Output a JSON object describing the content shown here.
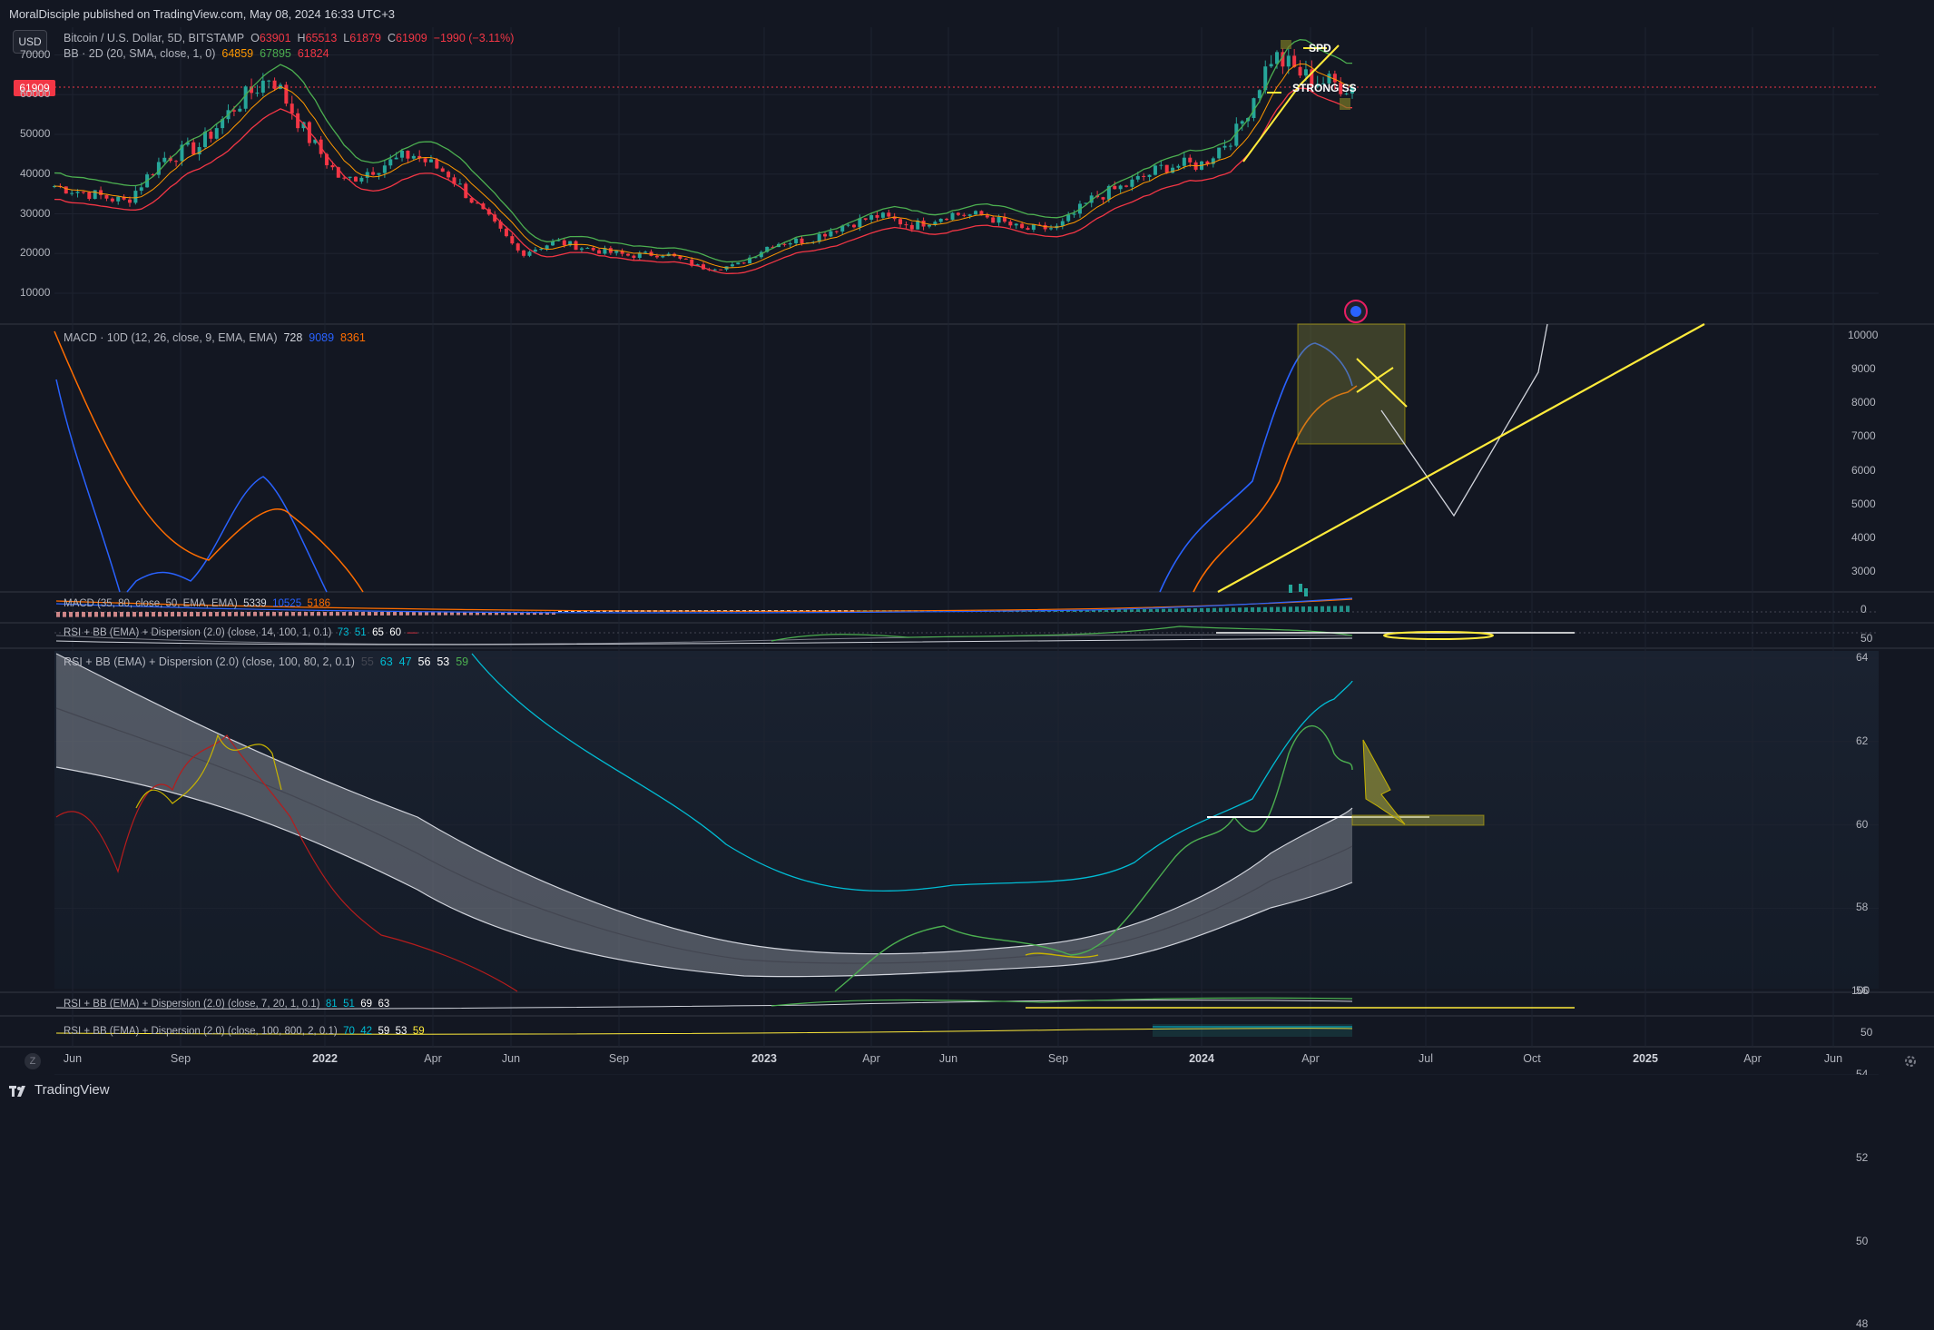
{
  "header": {
    "published": "MoralDisciple published on TradingView.com, May 08, 2024 16:33 UTC+3"
  },
  "footer": {
    "brand": "TradingView"
  },
  "toolbar": {
    "currency": "USD",
    "reset": "Z"
  },
  "price_tag": "61909",
  "legends": {
    "symbol": {
      "name": "Bitcoin / U.S. Dollar, 5D, BITSTAMP",
      "o_label": "O",
      "o": "63901",
      "h_label": "H",
      "h": "65513",
      "l_label": "L",
      "l": "61879",
      "c_label": "C",
      "c": "61909",
      "chg": "−1990 (−3.11%)"
    },
    "bb": {
      "name": "BB · 2D (20, SMA, close, 1, 0)",
      "v1": "64859",
      "v2": "67895",
      "v3": "61824"
    },
    "macd1": {
      "name": "MACD · 10D (12, 26, close, 9, EMA, EMA)",
      "v1": "728",
      "v2": "9089",
      "v3": "8361"
    },
    "macd2": {
      "name": "MACD (35, 80, close, 50, EMA, EMA)",
      "v1": "5339",
      "v2": "10525",
      "v3": "5186"
    },
    "rsi1": {
      "name": "RSI + BB (EMA) + Dispersion (2.0) (close, 14, 100, 1, 0.1)",
      "v1": "73",
      "v2": "51",
      "v3": "65",
      "v4": "60",
      "v5": "—"
    },
    "rsi2": {
      "name": "RSI + BB (EMA) + Dispersion (2.0) (close, 100, 80, 2, 0.1)",
      "v1": "55",
      "v2": "63",
      "v3": "47",
      "v4": "56",
      "v5": "53",
      "v6": "59"
    },
    "rsi3": {
      "name": "RSI + BB (EMA) + Dispersion (2.0) (close, 7, 20, 1, 0.1)",
      "v1": "81",
      "v2": "51",
      "v3": "69",
      "v4": "63"
    },
    "rsi4": {
      "name": "RSI + BB (EMA) + Dispersion (2.0) (close, 100, 800, 2, 0.1)",
      "v1": "70",
      "v2": "42",
      "v3": "59",
      "v4": "53",
      "v5": "59"
    }
  },
  "annotations": {
    "spd": "SPD",
    "strong": "STRONG SS"
  },
  "colors": {
    "up": "#26a69a",
    "down": "#f23645",
    "bbUpper": "#4caf50",
    "bbLower": "#f23645",
    "macd": "#2962ff",
    "signal": "#ff6d00",
    "drawing": "#ffeb3b"
  },
  "chart_data": [
    {
      "type": "line",
      "title": "Bitcoin / U.S. Dollar, 5D, BITSTAMP",
      "x": [
        "2021-05",
        "2021-06",
        "2021-07",
        "2021-08",
        "2021-09",
        "2021-10",
        "2021-11",
        "2021-12",
        "2022-01",
        "2022-02",
        "2022-03",
        "2022-04",
        "2022-05",
        "2022-06",
        "2022-07",
        "2022-08",
        "2022-09",
        "2022-10",
        "2022-11",
        "2022-12",
        "2023-01",
        "2023-02",
        "2023-03",
        "2023-04",
        "2023-05",
        "2023-06",
        "2023-07",
        "2023-08",
        "2023-09",
        "2023-10",
        "2023-11",
        "2023-12",
        "2024-01",
        "2024-02",
        "2024-03",
        "2024-04",
        "2024-05"
      ],
      "series": [
        {
          "values": [
            37000,
            35000,
            33000,
            44000,
            47000,
            57000,
            65000,
            50000,
            38000,
            42000,
            45000,
            40000,
            30000,
            20000,
            23000,
            21000,
            19500,
            20000,
            16500,
            16800,
            22500,
            23500,
            27000,
            29500,
            27000,
            30000,
            29500,
            26000,
            26500,
            34000,
            37500,
            42000,
            42500,
            51000,
            70000,
            64000,
            61909
          ]
        }
      ],
      "yticks": [
        10000,
        20000,
        30000,
        40000,
        50000,
        60000,
        70000
      ]
    },
    {
      "type": "line",
      "title": "MACD · 10D (12, 26, close, 9, EMA, EMA)",
      "x": [
        "2021-05",
        "2021-07",
        "2021-09",
        "2021-11",
        "2022-01",
        "2024-01",
        "2024-02",
        "2024-03",
        "2024-04",
        "2024-05"
      ],
      "series": [
        {
          "name": "MACD",
          "values": [
            8900,
            4500,
            2800,
            5800,
            2200,
            3000,
            5000,
            8500,
            10000,
            9089
          ]
        },
        {
          "name": "Signal",
          "values": [
            10300,
            6500,
            3700,
            4800,
            2600,
            2400,
            3800,
            6500,
            8000,
            8361
          ]
        }
      ],
      "yticks": [
        3000,
        4000,
        5000,
        6000,
        7000,
        8000,
        9000,
        10000
      ]
    },
    {
      "type": "line",
      "title": "RSI + BB (EMA) + Dispersion (2.0) (close, 100, 80, 2, 0.1)",
      "x": [
        "2021-05",
        "2021-07",
        "2021-09",
        "2021-11",
        "2022-01",
        "2022-03",
        "2022-05",
        "2022-07",
        "2022-09",
        "2022-11",
        "2023-01",
        "2023-03",
        "2023-05",
        "2023-07",
        "2023-09",
        "2023-11",
        "2024-01",
        "2024-03",
        "2024-05"
      ],
      "series": [
        {
          "values": [
            56,
            54,
            57,
            58,
            55,
            52,
            49,
            47,
            46,
            45,
            45,
            48,
            49,
            49,
            50,
            54,
            56,
            62,
            59
          ]
        }
      ],
      "yticks": [
        48,
        50,
        52,
        54,
        56,
        58,
        60,
        62,
        64
      ]
    }
  ],
  "axis": {
    "price_ticks": [
      "70000",
      "60000",
      "50000",
      "40000",
      "30000",
      "20000",
      "10000"
    ],
    "macd_ticks": [
      "10000",
      "9000",
      "8000",
      "7000",
      "6000",
      "5000",
      "4000",
      "3000",
      "0"
    ],
    "rsi_small_ticks": [
      "50"
    ],
    "rsi_ticks": [
      "64",
      "62",
      "60",
      "58",
      "56",
      "54",
      "52",
      "50",
      "48"
    ],
    "rsi3_ticks": [
      "100"
    ],
    "rsi4_ticks": [
      "50"
    ],
    "time_ticks": [
      {
        "label": "Jun",
        "bold": false
      },
      {
        "label": "Sep",
        "bold": false
      },
      {
        "label": "2022",
        "bold": true
      },
      {
        "label": "Apr",
        "bold": false
      },
      {
        "label": "Jun",
        "bold": false
      },
      {
        "label": "Sep",
        "bold": false
      },
      {
        "label": "2023",
        "bold": true
      },
      {
        "label": "Apr",
        "bold": false
      },
      {
        "label": "Jun",
        "bold": false
      },
      {
        "label": "Sep",
        "bold": false
      },
      {
        "label": "2024",
        "bold": true
      },
      {
        "label": "Apr",
        "bold": false
      },
      {
        "label": "Jul",
        "bold": false
      },
      {
        "label": "Oct",
        "bold": false
      },
      {
        "label": "2025",
        "bold": true
      },
      {
        "label": "Apr",
        "bold": false
      },
      {
        "label": "Jun",
        "bold": false
      }
    ]
  }
}
